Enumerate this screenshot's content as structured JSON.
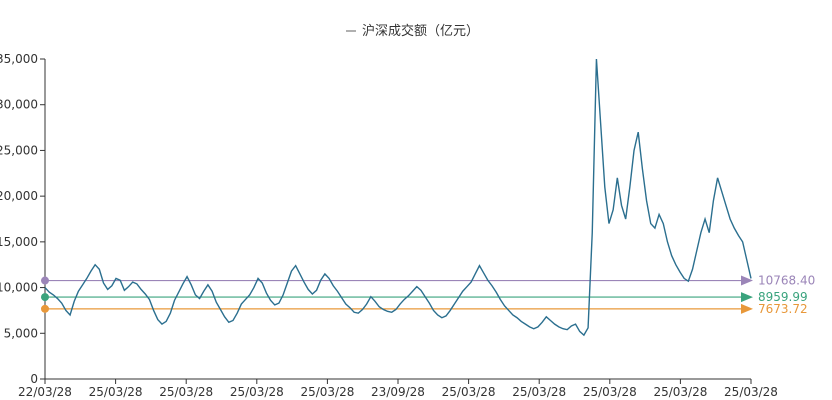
{
  "chart_data": {
    "type": "line",
    "legend": {
      "label": "沪深成交额（亿元）",
      "position": "top-center"
    },
    "x_tick_labels": [
      "22/03/28",
      "25/03/28",
      "25/03/28",
      "25/03/28",
      "25/03/28",
      "23/09/28",
      "25/03/28",
      "25/03/28",
      "25/03/28",
      "25/03/28",
      "25/03/28"
    ],
    "y_ticks": [
      0,
      5000,
      10000,
      15000,
      20000,
      25000,
      30000,
      35000
    ],
    "y_tick_labels": [
      "0",
      "5,000",
      "10,000",
      "15,000",
      "20,000",
      "25,000",
      "30,000",
      "35,000"
    ],
    "ylim": [
      0,
      35000
    ],
    "grid": false,
    "series": [
      {
        "name": "沪深成交额（亿元）",
        "color": "#2b6f8f",
        "values": [
          10000,
          9500,
          9200,
          8800,
          8300,
          7500,
          7000,
          8500,
          9600,
          10300,
          11000,
          11800,
          12500,
          12000,
          10500,
          9800,
          10200,
          11000,
          10800,
          9700,
          10100,
          10600,
          10400,
          9800,
          9300,
          8700,
          7500,
          6500,
          6000,
          6300,
          7200,
          8600,
          9500,
          10400,
          11200,
          10300,
          9200,
          8800,
          9600,
          10300,
          9600,
          8400,
          7600,
          6800,
          6200,
          6400,
          7200,
          8200,
          8700,
          9200,
          10000,
          11000,
          10500,
          9400,
          8600,
          8100,
          8300,
          9200,
          10500,
          11800,
          12400,
          11500,
          10600,
          9800,
          9300,
          9700,
          10800,
          11500,
          11000,
          10200,
          9600,
          8900,
          8200,
          7800,
          7300,
          7200,
          7600,
          8200,
          9000,
          8500,
          7900,
          7600,
          7400,
          7300,
          7600,
          8200,
          8700,
          9100,
          9600,
          10100,
          9700,
          9000,
          8300,
          7500,
          7000,
          6700,
          6900,
          7500,
          8200,
          8900,
          9600,
          10100,
          10600,
          11500,
          12400,
          11600,
          10800,
          10200,
          9500,
          8700,
          8000,
          7500,
          7000,
          6700,
          6300,
          6000,
          5700,
          5500,
          5700,
          6200,
          6800,
          6400,
          6000,
          5700,
          5500,
          5400,
          5800,
          6000,
          5200,
          4800,
          5600,
          16000,
          35000,
          28000,
          21000,
          17000,
          18500,
          22000,
          19000,
          17500,
          21000,
          25000,
          27000,
          23000,
          19500,
          17000,
          16500,
          18000,
          17000,
          15000,
          13500,
          12500,
          11700,
          11000,
          10700,
          12000,
          14000,
          16000,
          17500,
          16000,
          19500,
          22000,
          20500,
          19000,
          17500,
          16500,
          15700,
          15000,
          13000,
          11000
        ]
      }
    ],
    "reference_lines": [
      {
        "label": "10768.40",
        "value": 10768.4,
        "color": "#9b85b8"
      },
      {
        "label": "8959.99",
        "value": 8959.99,
        "color": "#3aa37d"
      },
      {
        "label": "7673.72",
        "value": 7673.72,
        "color": "#e8983a"
      }
    ]
  }
}
